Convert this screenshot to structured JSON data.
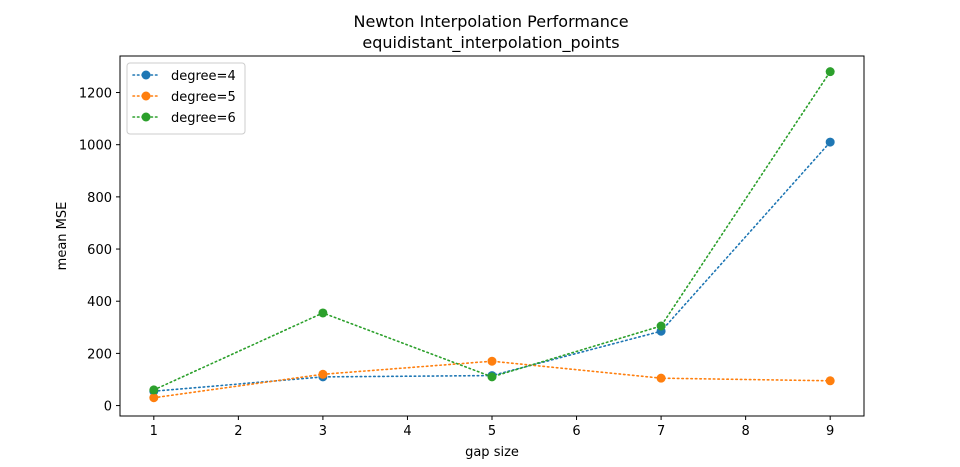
{
  "chart_data": {
    "type": "line",
    "title": "Newton Interpolation Performance",
    "subtitle": "equidistant_interpolation_points",
    "xlabel": "gap size",
    "ylabel": "mean MSE",
    "xlim": [
      0.6,
      9.4
    ],
    "ylim": [
      -40,
      1340
    ],
    "x_ticks": [
      1,
      2,
      3,
      4,
      5,
      6,
      7,
      8,
      9
    ],
    "y_ticks": [
      0,
      200,
      400,
      600,
      800,
      1000,
      1200
    ],
    "grid": false,
    "legend_position": "top-left",
    "x": [
      1,
      3,
      5,
      7,
      9
    ],
    "series": [
      {
        "name": "degree=4",
        "color": "#1f77b4",
        "values": [
          55,
          110,
          115,
          285,
          1010
        ]
      },
      {
        "name": "degree=5",
        "color": "#ff7f0e",
        "values": [
          30,
          120,
          170,
          105,
          95
        ]
      },
      {
        "name": "degree=6",
        "color": "#2ca02c",
        "values": [
          60,
          355,
          110,
          305,
          1280
        ]
      }
    ],
    "line_style": "dotted",
    "marker": "circle"
  }
}
